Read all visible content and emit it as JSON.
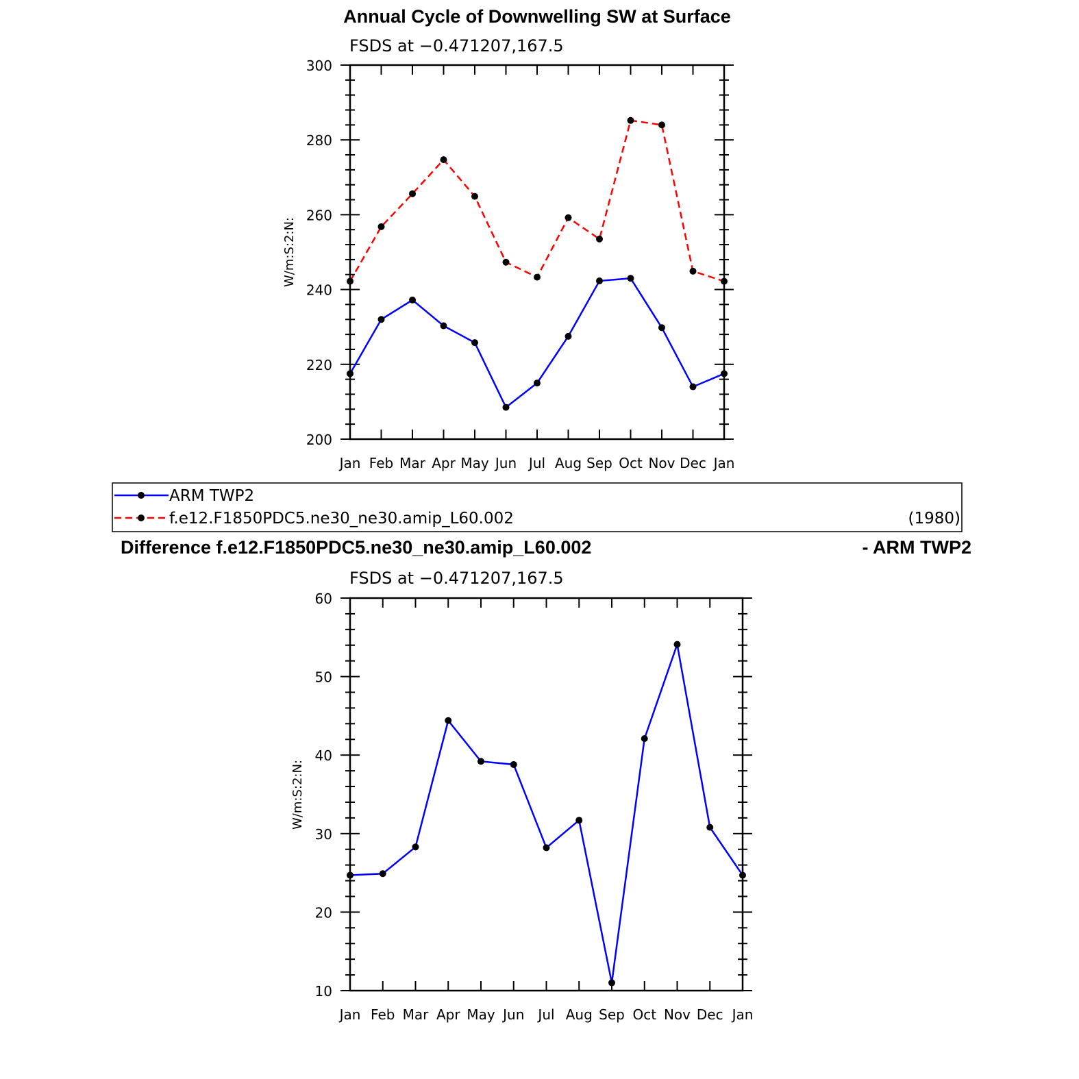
{
  "chart_data": [
    {
      "type": "line",
      "title": "Annual Cycle of Downwelling SW at Surface",
      "subtitle": "FSDS at −0.471207,167.5",
      "ylabel": "W/m:S:2:N:",
      "xlabel": "",
      "categories": [
        "Jan",
        "Feb",
        "Mar",
        "Apr",
        "May",
        "Jun",
        "Jul",
        "Aug",
        "Sep",
        "Oct",
        "Nov",
        "Dec",
        "Jan"
      ],
      "ylim": [
        200,
        300
      ],
      "yticks": [
        "200",
        "220",
        "240",
        "260",
        "280",
        "300"
      ],
      "grid": false,
      "series": [
        {
          "name": "ARM TWP2",
          "color": "#0000ff",
          "dash": "solid",
          "values": [
            217.5,
            232,
            237.2,
            230.3,
            225.8,
            208.5,
            215,
            227.5,
            242.3,
            243,
            229.8,
            214,
            217.5
          ]
        },
        {
          "name": "f.e12.F1850PDC5.ne30_ne30.amip_L60.002",
          "color": "#ff0000",
          "dash": "dashed",
          "values": [
            242.2,
            256.8,
            265.6,
            274.7,
            264.9,
            247.3,
            243.3,
            259.2,
            253.5,
            285.2,
            284,
            244.9,
            242.2
          ]
        }
      ]
    },
    {
      "type": "line",
      "title": "Difference f.e12.F1850PDC5.ne30_ne30.amip_L60.002",
      "title_right": "- ARM TWP2",
      "subtitle": "FSDS at −0.471207,167.5",
      "ylabel": "W/m:S:2:N:",
      "xlabel": "",
      "categories": [
        "Jan",
        "Feb",
        "Mar",
        "Apr",
        "May",
        "Jun",
        "Jul",
        "Aug",
        "Sep",
        "Oct",
        "Nov",
        "Dec",
        "Jan"
      ],
      "ylim": [
        10,
        60
      ],
      "yticks": [
        "10",
        "20",
        "30",
        "40",
        "50",
        "60"
      ],
      "grid": false,
      "series": [
        {
          "color": "#0000ff",
          "dash": "solid",
          "values": [
            24.7,
            24.9,
            28.3,
            44.4,
            39.2,
            38.8,
            28.2,
            31.7,
            11,
            42.1,
            54.1,
            30.8,
            24.7
          ]
        }
      ]
    }
  ],
  "legend": {
    "items": [
      {
        "label": "ARM TWP2",
        "color": "#0000ff",
        "dash": "solid"
      },
      {
        "label": "f.e12.F1850PDC5.ne30_ne30.amip_L60.002",
        "color": "#ff0000",
        "dash": "dashed"
      }
    ],
    "year": "(1980)"
  }
}
